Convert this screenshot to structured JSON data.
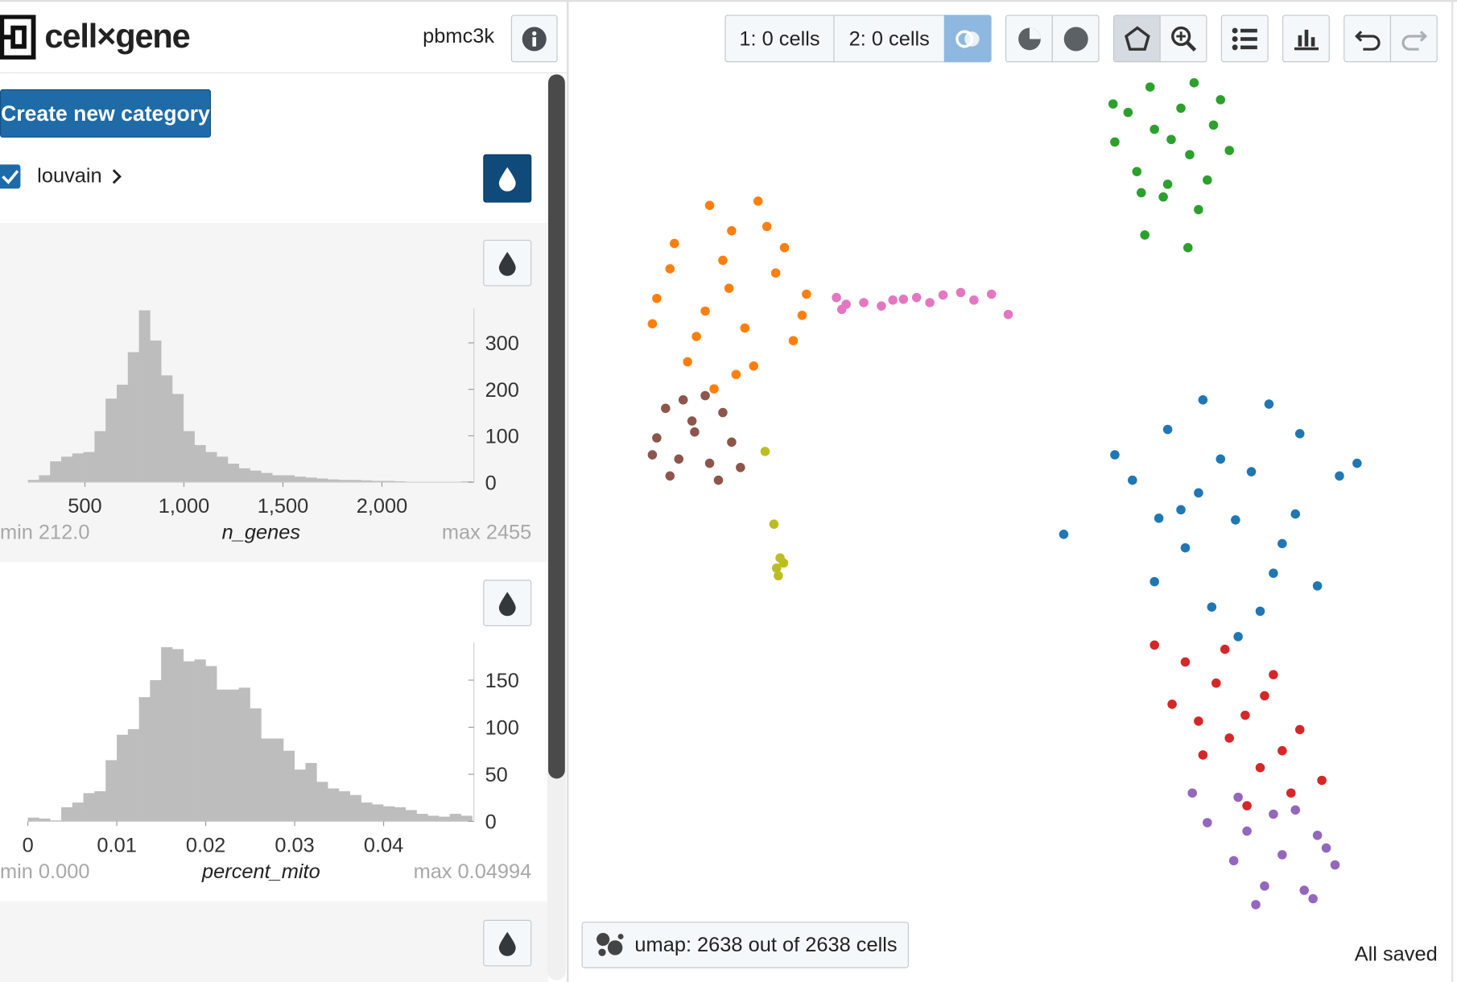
{
  "header": {
    "app_name": "cell×gene",
    "dataset": "pbmc3k"
  },
  "left_panel": {
    "create_button": "Create new category",
    "category": "louvain"
  },
  "toolbar": {
    "selection_1": "1: 0 cells",
    "selection_2": "2: 0 cells"
  },
  "embedding_button": "umap: 2638 out of 2638 cells",
  "status": "All saved",
  "chart_data": [
    {
      "type": "histogram",
      "x_label": "n_genes",
      "min_label": "min 212.0",
      "max_label": "max 2455",
      "color": "#bdbdbd",
      "bins": [
        212.0,
        268.1,
        324.2,
        380.2,
        436.3,
        492.4,
        548.5,
        604.5,
        660.6,
        716.7,
        772.8,
        828.8,
        884.9,
        941.0,
        997.1,
        1053.1,
        1109.2,
        1165.3,
        1221.4,
        1277.4,
        1333.5,
        1389.6,
        1445.7,
        1501.7,
        1557.8,
        1613.9,
        1670.0,
        1726.0,
        1782.1,
        1838.2,
        1894.3,
        1950.3,
        2006.4,
        2062.5,
        2118.6,
        2174.6,
        2230.7,
        2286.8,
        2342.9,
        2398.9,
        2455.0
      ],
      "values": [
        5,
        15,
        45,
        55,
        62,
        65,
        110,
        180,
        210,
        280,
        370,
        305,
        230,
        190,
        110,
        80,
        65,
        55,
        40,
        30,
        25,
        20,
        15,
        15,
        12,
        10,
        8,
        6,
        5,
        5,
        4,
        3,
        3,
        2,
        1,
        1,
        1,
        1,
        1,
        2
      ],
      "xlim": [
        212.0,
        2455
      ],
      "ylim": [
        0,
        375
      ],
      "xticks": [
        500,
        {
          "value": 1000,
          "label": "1,000"
        },
        {
          "value": 1500,
          "label": "1,500"
        },
        {
          "value": 2000,
          "label": "2,000"
        }
      ],
      "yticks": [
        0,
        100,
        200,
        300
      ]
    },
    {
      "type": "histogram",
      "x_label": "percent_mito",
      "min_label": "min 0.000",
      "max_label": "max 0.04994",
      "color": "#bdbdbd",
      "bins": [
        0,
        0.00125,
        0.0025,
        0.00375,
        0.00499,
        0.00624,
        0.00749,
        0.00874,
        0.00999,
        0.01124,
        0.01249,
        0.01373,
        0.01498,
        0.01623,
        0.01748,
        0.01873,
        0.01998,
        0.02122,
        0.02247,
        0.02372,
        0.02497,
        0.02622,
        0.02747,
        0.02872,
        0.02996,
        0.03121,
        0.03246,
        0.03371,
        0.03496,
        0.03621,
        0.03746,
        0.0387,
        0.03995,
        0.0412,
        0.04245,
        0.0437,
        0.04495,
        0.04619,
        0.04744,
        0.04869,
        0.04994
      ],
      "values": [
        4,
        3,
        1,
        15,
        20,
        30,
        32,
        65,
        92,
        98,
        132,
        150,
        185,
        183,
        170,
        172,
        165,
        140,
        140,
        142,
        120,
        88,
        88,
        75,
        55,
        62,
        42,
        35,
        32,
        28,
        20,
        18,
        16,
        15,
        12,
        8,
        6,
        5,
        8,
        6
      ],
      "xlim": [
        0,
        0.04994
      ],
      "ylim": [
        0,
        190
      ],
      "xticks": [
        0,
        0.01,
        0.02,
        0.03,
        0.04
      ],
      "yticks": [
        0,
        50,
        100,
        150
      ]
    },
    {
      "type": "scatter",
      "xlim": [
        0,
        100
      ],
      "ylim": [
        0,
        100
      ],
      "series": [
        {
          "color": "#2ca02c",
          "x": [
            68.4,
            63.5,
            73.2,
            66.0,
            71.0,
            62.0,
            75.0,
            68.0,
            64.5,
            72.5,
            69.5,
            66.5,
            70.5,
            61.8,
            74.0,
            67.5,
            71.5,
            65.0,
            65.4,
            70.3
          ],
          "values": [
            92.3,
            95.5,
            94.0,
            98.5,
            99.0,
            92.0,
            91.0,
            87.0,
            88.5,
            87.5,
            96.0,
            93.5,
            90.5,
            96.5,
            97.0,
            85.5,
            84.0,
            86.0,
            81.0,
            79.5
          ]
        },
        {
          "color": "#ff7f0e",
          "x": [
            18.2,
            12.0,
            24.5,
            16.0,
            21.5,
            10.0,
            27.0,
            14.5,
            20.0,
            25.5,
            11.5,
            17.5,
            22.5,
            13.5,
            19.0,
            23.5,
            15.5,
            26.5,
            9.5,
            21.0,
            18.5,
            16.5
          ],
          "values": [
            74.7,
            80.0,
            79.5,
            84.5,
            85.0,
            73.5,
            74.0,
            69.0,
            70.0,
            68.5,
            77.0,
            78.0,
            82.0,
            66.0,
            64.5,
            76.5,
            72.0,
            71.5,
            70.5,
            65.5,
            81.5,
            62.8
          ]
        },
        {
          "color": "#8c564b",
          "x": [
            14.3,
            11.0,
            17.5,
            12.5,
            16.0,
            10.0,
            18.5,
            13.0,
            15.5,
            11.5,
            17.0,
            14.0,
            9.5,
            19.5
          ],
          "values": [
            57.7,
            60.5,
            60.0,
            54.5,
            54.0,
            57.0,
            56.5,
            61.5,
            62.0,
            52.5,
            52.0,
            59.0,
            55.0,
            53.5
          ]
        },
        {
          "color": "#e377c2",
          "x": [
            30.4,
            31.5,
            33.5,
            35.5,
            36.8,
            38.0,
            39.5,
            41.0,
            42.5,
            44.5,
            46.0,
            48.0,
            49.9,
            31.0
          ],
          "values": [
            73.6,
            72.8,
            73.0,
            72.6,
            73.3,
            73.4,
            73.6,
            73.0,
            73.9,
            74.2,
            73.3,
            74.0,
            71.6,
            72.2
          ]
        },
        {
          "color": "#bcbd22",
          "x": [
            22.3,
            23.3,
            24.0,
            23.6,
            24.4,
            23.8
          ],
          "values": [
            55.4,
            46.8,
            42.8,
            41.6,
            42.2,
            40.7
          ]
        },
        {
          "color": "#1f77b4",
          "x": [
            75.7,
            68.0,
            83.0,
            72.0,
            79.5,
            64.0,
            87.5,
            70.0,
            81.0,
            66.5,
            85.0,
            74.0,
            77.5,
            69.5,
            82.5,
            73.0,
            78.5,
            76.0,
            62.0,
            89.5,
            71.5,
            80.0,
            56.2,
            67.0
          ],
          "values": [
            47.3,
            58.0,
            57.5,
            61.5,
            61.0,
            52.0,
            52.5,
            44.0,
            44.5,
            40.0,
            39.5,
            54.5,
            53.0,
            48.5,
            48.0,
            37.0,
            36.5,
            33.5,
            55.0,
            54.0,
            50.5,
            41.0,
            45.6,
            47.5
          ]
        },
        {
          "color": "#d62728",
          "x": [
            76.8,
            70.0,
            73.5,
            80.0,
            68.5,
            75.0,
            83.0,
            72.0,
            78.5,
            85.5,
            79.0,
            74.5,
            82.0,
            66.5,
            77.0,
            81.0,
            71.5
          ],
          "values": [
            24.2,
            30.5,
            28.0,
            29.0,
            25.5,
            21.5,
            22.5,
            19.5,
            18.0,
            16.5,
            26.5,
            32.0,
            15.0,
            32.5,
            13.5,
            20.0,
            23.5
          ]
        },
        {
          "color": "#9467bd",
          "x": [
            81.0,
            77.0,
            85.0,
            79.0,
            83.5,
            75.5,
            87.0,
            80.0,
            82.5,
            78.0,
            84.5,
            72.5,
            70.8,
            76.0,
            86.0
          ],
          "values": [
            7.7,
            10.5,
            10.0,
            4.0,
            3.5,
            7.0,
            6.5,
            12.5,
            13.0,
            1.8,
            2.5,
            11.5,
            15.0,
            14.5,
            8.5
          ]
        }
      ]
    }
  ]
}
